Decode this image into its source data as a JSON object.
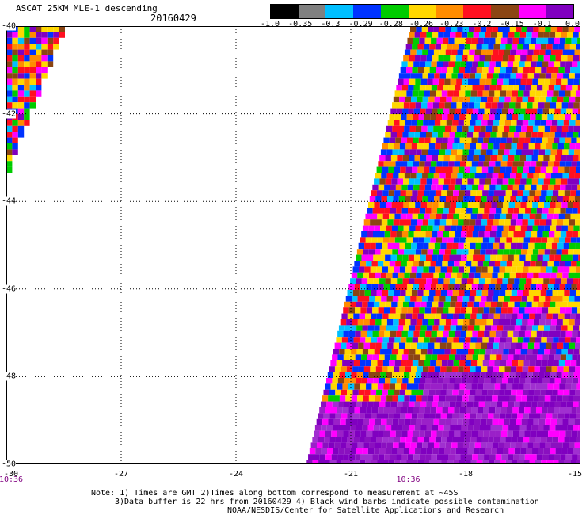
{
  "header": {
    "title": "ASCAT 25KM MLE-1 descending",
    "date": "20160429"
  },
  "colorbar": {
    "colors": [
      "#000000",
      "#808080",
      "#00bfff",
      "#0033ff",
      "#00cc00",
      "#ffd700",
      "#ff8c00",
      "#ff1020",
      "#8b4513",
      "#ff00ff",
      "#8000c0"
    ],
    "labels": [
      "-1.0",
      "-0.35",
      "-0.3",
      "-0.29",
      "-0.28",
      "-0.26",
      "-0.23",
      "-0.2",
      "-0.15",
      "-0.1",
      "0.0"
    ]
  },
  "map": {
    "lat_labels": [
      "-40",
      "-42",
      "-44",
      "-46",
      "-48",
      "-50"
    ],
    "lon_labels": [
      "-30",
      "-27",
      "-24",
      "-21",
      "-18",
      "-15"
    ],
    "lat_range": [
      -50,
      -40
    ],
    "lon_range": [
      -30,
      -15
    ],
    "time_labels": [
      {
        "text": "10:36",
        "lon": -30
      },
      {
        "text": "10:36",
        "lon": -19.5
      }
    ],
    "swaths": [
      {
        "name": "west-swath",
        "lat_top": -40,
        "lat_bottom": -43.4,
        "lon_min": -30,
        "lon_max": -28.6
      },
      {
        "name": "east-swath",
        "lat_top": -40,
        "lat_bottom": -50,
        "lon_min": -22.8,
        "lon_max": -15
      }
    ]
  },
  "notes": [
    "Note: 1) Times are GMT 2)Times along bottom correspond to measurement at ~45S",
    "3)Data buffer is 22 hrs from 20160429 4) Black wind barbs indicate possible contamination",
    "NOAA/NESDIS/Center for Satellite Applications and Research"
  ]
}
